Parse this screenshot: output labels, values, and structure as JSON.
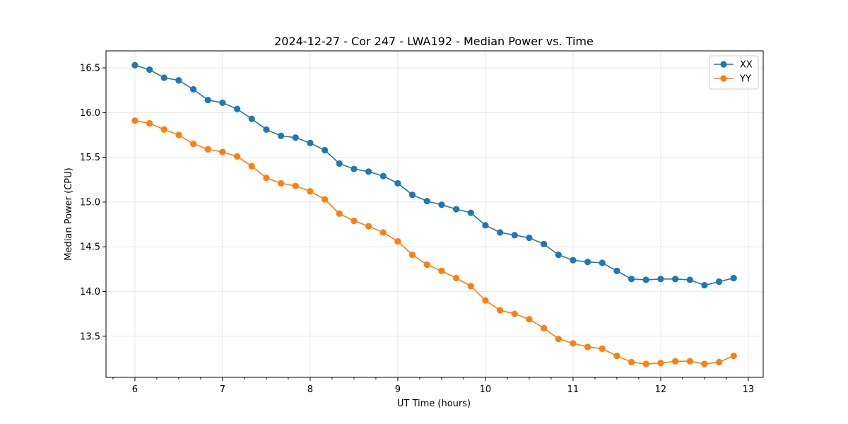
{
  "chart_data": {
    "type": "line",
    "title": "2024-12-27 - Cor 247 - LWA192 - Median Power vs. Time",
    "xlabel": "UT Time (hours)",
    "ylabel": "Median Power (CPU)",
    "xlim": [
      5.67,
      13.17
    ],
    "ylim": [
      13.04,
      16.69
    ],
    "xticks": [
      6,
      7,
      8,
      9,
      10,
      11,
      12,
      13
    ],
    "yticks": [
      13.5,
      14.0,
      14.5,
      15.0,
      15.5,
      16.0,
      16.5
    ],
    "grid": true,
    "legend_position": "top-right",
    "x": [
      6.0,
      6.1667,
      6.3333,
      6.5,
      6.6667,
      6.8333,
      7.0,
      7.1667,
      7.3333,
      7.5,
      7.6667,
      7.8333,
      8.0,
      8.1667,
      8.3333,
      8.5,
      8.6667,
      8.8333,
      9.0,
      9.1667,
      9.3333,
      9.5,
      9.6667,
      9.8333,
      10.0,
      10.1667,
      10.3333,
      10.5,
      10.6667,
      10.8333,
      11.0,
      11.1667,
      11.3333,
      11.5,
      11.6667,
      11.8333,
      12.0,
      12.1667,
      12.3333,
      12.5,
      12.6667,
      12.8333
    ],
    "series": [
      {
        "name": "XX",
        "color": "#1f77b4",
        "values": [
          16.53,
          16.48,
          16.39,
          16.36,
          16.26,
          16.14,
          16.11,
          16.04,
          15.93,
          15.81,
          15.74,
          15.72,
          15.66,
          15.58,
          15.43,
          15.37,
          15.34,
          15.29,
          15.21,
          15.08,
          15.01,
          14.97,
          14.92,
          14.88,
          14.74,
          14.66,
          14.63,
          14.6,
          14.53,
          14.41,
          14.35,
          14.33,
          14.32,
          14.23,
          14.14,
          14.13,
          14.14,
          14.14,
          14.13,
          14.07,
          14.11,
          14.15
        ]
      },
      {
        "name": "YY",
        "color": "#ff7f0e",
        "values": [
          15.91,
          15.88,
          15.81,
          15.75,
          15.65,
          15.59,
          15.56,
          15.51,
          15.4,
          15.27,
          15.21,
          15.18,
          15.12,
          15.03,
          14.87,
          14.79,
          14.73,
          14.66,
          14.56,
          14.41,
          14.3,
          14.23,
          14.15,
          14.06,
          13.9,
          13.79,
          13.75,
          13.69,
          13.59,
          13.47,
          13.42,
          13.38,
          13.36,
          13.28,
          13.21,
          13.19,
          13.2,
          13.22,
          13.22,
          13.19,
          13.21,
          13.28
        ]
      }
    ]
  }
}
